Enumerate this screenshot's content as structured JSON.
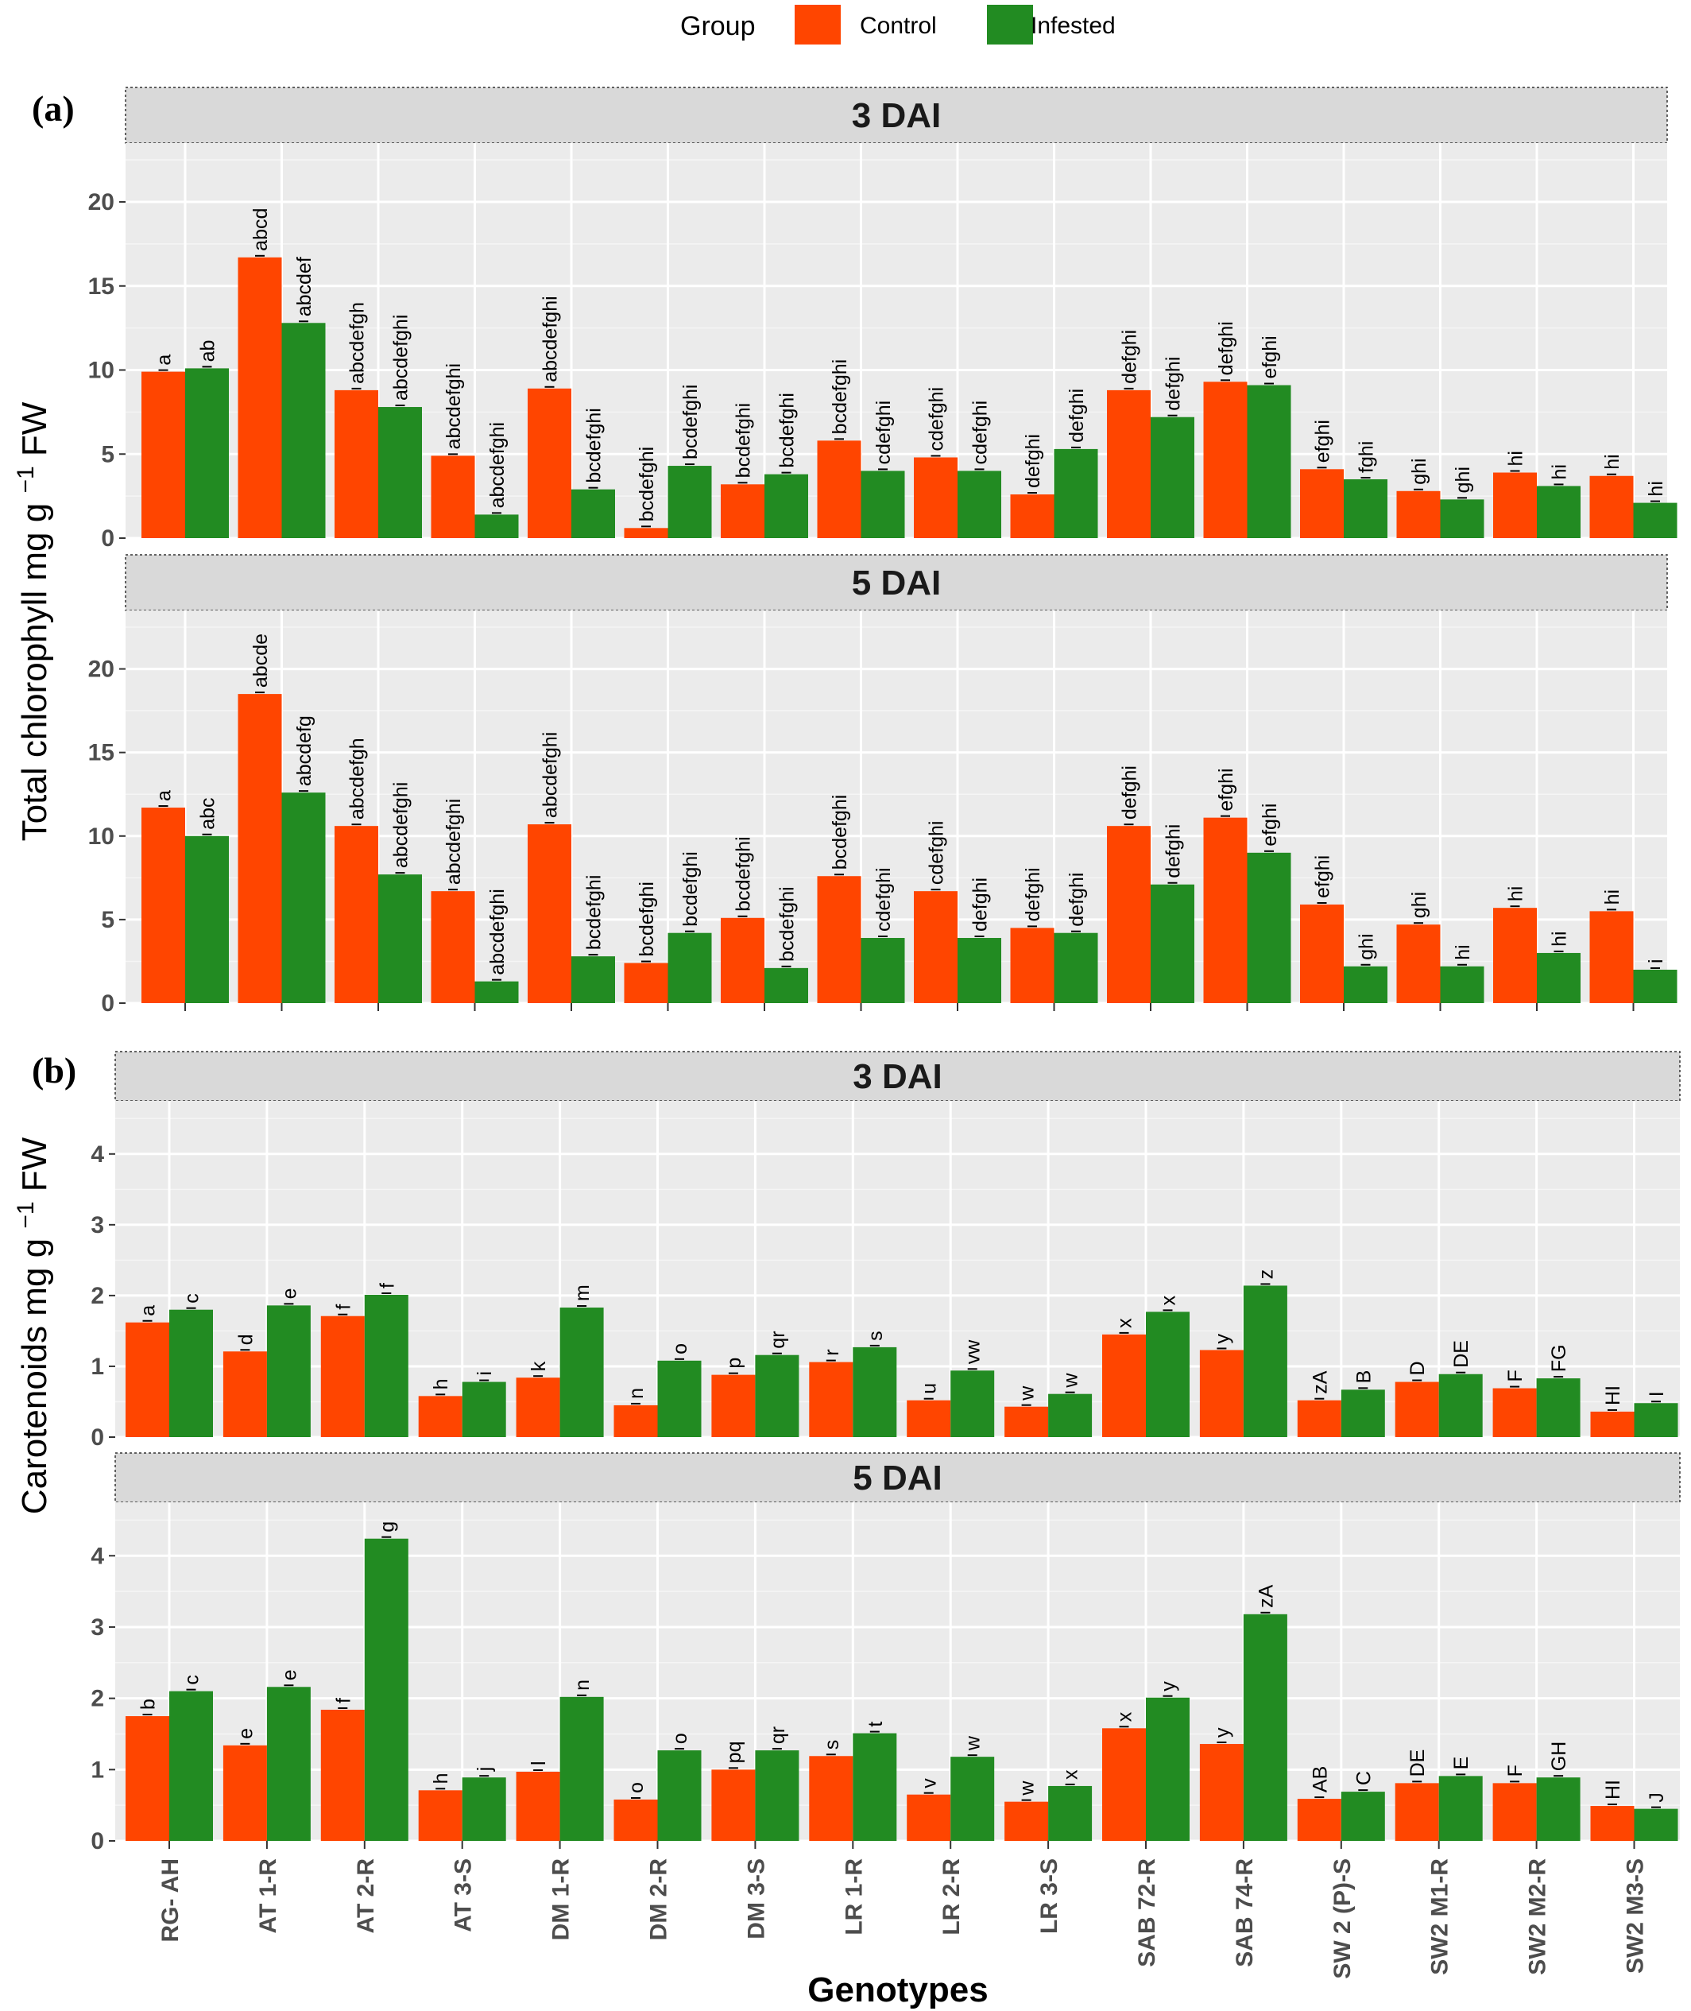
{
  "legend": {
    "title": "Group",
    "items": [
      {
        "label": "Control",
        "color": "#FF4500"
      },
      {
        "label": "Infested",
        "color": "#228B22"
      }
    ]
  },
  "x_title": "Genotypes",
  "chart_data": [
    {
      "type": "bar",
      "panel_tag": "(a)",
      "strip": "3 DAI",
      "ylabel": "Total chlorophyll mg g^-1 FW",
      "ylim": [
        0,
        23.5
      ],
      "yticks": [
        0,
        5,
        10,
        15,
        20
      ],
      "categories": [
        "RG- AH",
        "AT 1-R",
        "AT 2-R",
        "AT 3-S",
        "DM 1-R",
        "DM 2-R",
        "DM 3-S",
        "LR 1-R",
        "LR 2-R",
        "LR 3-S",
        "SAB 72-R",
        "SAB 74-R",
        "SW 2 (P)-S",
        "SW2 M1-R",
        "SW2 M2-R",
        "SW2 M3-S"
      ],
      "series": [
        {
          "name": "Control",
          "values": [
            9.9,
            16.7,
            8.8,
            4.9,
            8.9,
            0.6,
            3.2,
            5.8,
            4.8,
            2.6,
            8.8,
            9.3,
            4.1,
            2.8,
            3.9,
            3.7
          ],
          "labels": [
            "a",
            "abcd",
            "abcdefgh",
            "abcdefghi",
            "abcdefghi",
            "bcdefghi",
            "bcdefghi",
            "bcdefghi",
            "cdefghi",
            "defghi",
            "defghi",
            "defghi",
            "efghi",
            "ghi",
            "hi",
            "hi"
          ]
        },
        {
          "name": "Infested",
          "values": [
            10.1,
            12.8,
            7.8,
            1.4,
            2.9,
            4.3,
            3.8,
            4.0,
            4.0,
            5.3,
            7.2,
            9.1,
            3.5,
            2.3,
            3.1,
            2.1
          ],
          "labels": [
            "ab",
            "abcdef",
            "abcdefghi",
            "abcdefghi",
            "bcdefghi",
            "bcdefghi",
            "bcdefghi",
            "cdefghi",
            "cdefghi",
            "defghi",
            "defghi",
            "efghi",
            "fghi",
            "ghi",
            "hi",
            "hi"
          ]
        }
      ]
    },
    {
      "type": "bar",
      "panel_tag": "",
      "strip": "5 DAI",
      "ylabel": "",
      "ylim": [
        0,
        23.5
      ],
      "yticks": [
        0,
        5,
        10,
        15,
        20
      ],
      "categories": [
        "RG- AH",
        "AT 1-R",
        "AT 2-R",
        "AT 3-S",
        "DM 1-R",
        "DM 2-R",
        "DM 3-S",
        "LR 1-R",
        "LR 2-R",
        "LR 3-S",
        "SAB 72-R",
        "SAB 74-R",
        "SW 2 (P)-S",
        "SW2 M1-R",
        "SW2 M2-R",
        "SW2 M3-S"
      ],
      "series": [
        {
          "name": "Control",
          "values": [
            11.7,
            18.5,
            10.6,
            6.7,
            10.7,
            2.4,
            5.1,
            7.6,
            6.7,
            4.5,
            10.6,
            11.1,
            5.9,
            4.7,
            5.7,
            5.5
          ],
          "labels": [
            "a",
            "abcde",
            "abcdefgh",
            "abcdefghi",
            "abcdefghi",
            "bcdefghi",
            "bcdefghi",
            "bcdefghi",
            "cdefghi",
            "defghi",
            "defghi",
            "efghi",
            "efghi",
            "ghi",
            "hi",
            "hi"
          ]
        },
        {
          "name": "Infested",
          "values": [
            10.0,
            12.6,
            7.7,
            1.3,
            2.8,
            4.2,
            2.1,
            3.9,
            3.9,
            4.2,
            7.1,
            9.0,
            2.2,
            2.2,
            3.0,
            2.0
          ],
          "labels": [
            "abc",
            "abcdefg",
            "abcdefghi",
            "abcdefghi",
            "bcdefghi",
            "bcdefghi",
            "bcdefghi",
            "cdefghi",
            "defghi",
            "defghi",
            "defghi",
            "efghi",
            "ghi",
            "hi",
            "hi",
            "i"
          ]
        }
      ]
    },
    {
      "type": "bar",
      "panel_tag": "(b)",
      "strip": "3 DAI",
      "ylabel": "Carotenoids mg g^-1 FW",
      "ylim": [
        0,
        4.75
      ],
      "yticks": [
        0,
        1,
        2,
        3,
        4
      ],
      "categories": [
        "RG- AH",
        "AT 1-R",
        "AT 2-R",
        "AT 3-S",
        "DM 1-R",
        "DM 2-R",
        "DM 3-S",
        "LR 1-R",
        "LR 2-R",
        "LR 3-S",
        "SAB 72-R",
        "SAB 74-R",
        "SW 2 (P)-S",
        "SW2 M1-R",
        "SW2 M2-R",
        "SW2 M3-S"
      ],
      "series": [
        {
          "name": "Control",
          "values": [
            1.62,
            1.21,
            1.71,
            0.58,
            0.84,
            0.45,
            0.88,
            1.06,
            0.52,
            0.43,
            1.45,
            1.23,
            0.52,
            0.78,
            0.69,
            0.36
          ],
          "labels": [
            "a",
            "d",
            "f",
            "h",
            "k",
            "n",
            "p",
            "r",
            "u",
            "w",
            "x",
            "y",
            "zA",
            "D",
            "F",
            "HI"
          ]
        },
        {
          "name": "Infested",
          "values": [
            1.8,
            1.86,
            2.01,
            0.78,
            1.83,
            1.08,
            1.16,
            1.27,
            0.94,
            0.61,
            1.77,
            2.14,
            0.67,
            0.89,
            0.83,
            0.48
          ],
          "labels": [
            "c",
            "e",
            "f",
            "i",
            "m",
            "o",
            "qr",
            "s",
            "vw",
            "w",
            "x",
            "z",
            "B",
            "DE",
            "FG",
            "I"
          ]
        }
      ]
    },
    {
      "type": "bar",
      "panel_tag": "",
      "strip": "5 DAI",
      "ylabel": "",
      "ylim": [
        0,
        4.75
      ],
      "yticks": [
        0,
        1,
        2,
        3,
        4
      ],
      "categories": [
        "RG- AH",
        "AT 1-R",
        "AT 2-R",
        "AT 3-S",
        "DM 1-R",
        "DM 2-R",
        "DM 3-S",
        "LR 1-R",
        "LR 2-R",
        "LR 3-S",
        "SAB 72-R",
        "SAB 74-R",
        "SW 2 (P)-S",
        "SW2 M1-R",
        "SW2 M2-R",
        "SW2 M3-S"
      ],
      "series": [
        {
          "name": "Control",
          "values": [
            1.75,
            1.34,
            1.84,
            0.71,
            0.97,
            0.58,
            1.0,
            1.19,
            0.65,
            0.55,
            1.58,
            1.36,
            0.59,
            0.81,
            0.81,
            0.49
          ],
          "labels": [
            "b",
            "e",
            "f",
            "h",
            "l",
            "o",
            "pq",
            "s",
            "v",
            "w",
            "x",
            "y",
            "AB",
            "DE",
            "F",
            "HI"
          ]
        },
        {
          "name": "Infested",
          "values": [
            2.1,
            2.16,
            4.24,
            0.89,
            2.02,
            1.27,
            1.27,
            1.51,
            1.18,
            0.77,
            2.01,
            3.18,
            0.69,
            0.91,
            0.89,
            0.45
          ],
          "labels": [
            "c",
            "e",
            "g",
            "j",
            "n",
            "o",
            "qr",
            "t",
            "w",
            "x",
            "y",
            "zA",
            "C",
            "E",
            "GH",
            "J"
          ]
        }
      ]
    }
  ]
}
